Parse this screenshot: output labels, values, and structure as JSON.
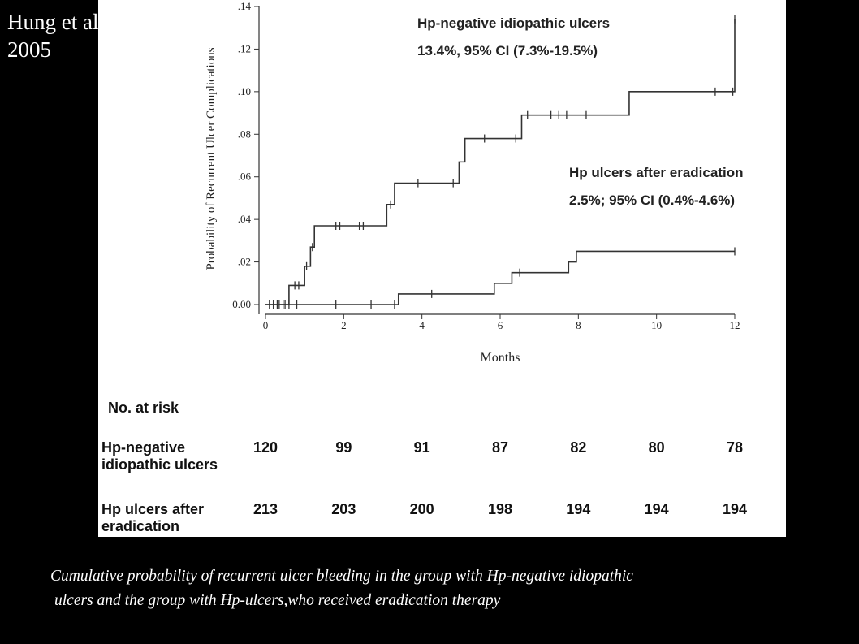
{
  "citation": "Hung et al,\n2005",
  "caption": {
    "line1": "Cumulative probability of recurrent ulcer bleeding in the group with Hp-negative idiopathic",
    "line2": "ulcers and the group with Hp-ulcers,who received eradication therapy"
  },
  "chart_data": {
    "type": "line",
    "title": "",
    "xlabel": "Months",
    "ylabel": "Probability of Recurrent Ulcer Complications",
    "xlim": [
      0,
      12
    ],
    "ylim": [
      0,
      0.14
    ],
    "x_ticks": [
      "0",
      "2",
      "4",
      "6",
      "8",
      "10",
      "12"
    ],
    "y_ticks": [
      "0.00",
      ".02",
      ".04",
      ".06",
      ".08",
      ".10",
      ".12",
      ".14"
    ],
    "grid": false,
    "series": [
      {
        "name": "Hp-negative idiopathic ulcers",
        "step_points": [
          [
            0,
            0
          ],
          [
            0.6,
            0
          ],
          [
            0.6,
            0.009
          ],
          [
            1.0,
            0.009
          ],
          [
            1.0,
            0.018
          ],
          [
            1.15,
            0.018
          ],
          [
            1.15,
            0.027
          ],
          [
            1.25,
            0.027
          ],
          [
            1.25,
            0.037
          ],
          [
            3.1,
            0.037
          ],
          [
            3.1,
            0.047
          ],
          [
            3.3,
            0.047
          ],
          [
            3.3,
            0.057
          ],
          [
            4.95,
            0.057
          ],
          [
            4.95,
            0.067
          ],
          [
            5.1,
            0.067
          ],
          [
            5.1,
            0.078
          ],
          [
            6.55,
            0.078
          ],
          [
            6.55,
            0.089
          ],
          [
            9.3,
            0.089
          ],
          [
            9.3,
            0.1
          ],
          [
            12,
            0.1
          ],
          [
            12,
            0.134
          ]
        ],
        "censor_x": [
          0.1,
          0.2,
          0.3,
          0.45,
          0.75,
          0.85,
          1.05,
          1.2,
          1.8,
          1.9,
          2.4,
          2.5,
          3.2,
          3.9,
          4.8,
          5.6,
          6.4,
          6.7,
          7.3,
          7.5,
          7.7,
          8.2,
          11.5,
          11.95,
          12
        ]
      },
      {
        "name": "Hp ulcers after eradication",
        "step_points": [
          [
            0,
            0
          ],
          [
            3.4,
            0
          ],
          [
            3.4,
            0.005
          ],
          [
            5.85,
            0.005
          ],
          [
            5.85,
            0.01
          ],
          [
            6.3,
            0.01
          ],
          [
            6.3,
            0.015
          ],
          [
            7.75,
            0.015
          ],
          [
            7.75,
            0.02
          ],
          [
            7.95,
            0.02
          ],
          [
            7.95,
            0.025
          ],
          [
            12,
            0.025
          ]
        ],
        "censor_x": [
          0.2,
          0.35,
          0.5,
          0.6,
          0.8,
          1.8,
          2.7,
          3.3,
          4.25,
          6.5,
          12
        ]
      }
    ],
    "annotations": [
      {
        "series": 0,
        "line1": "Hp-negative idiopathic ulcers",
        "line2": "13.4%, 95% CI (7.3%-19.5%)"
      },
      {
        "series": 1,
        "line1": "Hp ulcers after eradication",
        "line2": "2.5%; 95% CI (0.4%-4.6%)"
      }
    ]
  },
  "risk_table": {
    "heading": "No. at risk",
    "rows": [
      {
        "label_line1": "Hp-negative",
        "label_line2": "idiopathic ulcers",
        "values": [
          "120",
          "99",
          "91",
          "87",
          "82",
          "80",
          "78"
        ]
      },
      {
        "label_line1": "Hp ulcers after",
        "label_line2": "eradication",
        "values": [
          "213",
          "203",
          "200",
          "198",
          "194",
          "194",
          "194"
        ]
      }
    ]
  }
}
